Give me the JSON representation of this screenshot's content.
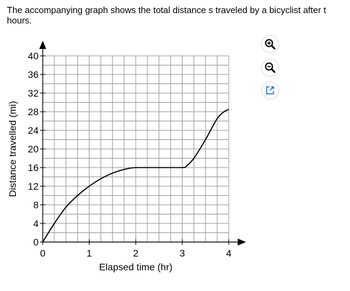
{
  "question": {
    "text": "The accompanying graph shows the total distance s traveled by a bicyclist after t hours."
  },
  "toolbar": {
    "buttons": [
      {
        "name": "zoom-in",
        "icon": "zoom-in-icon"
      },
      {
        "name": "zoom-out",
        "icon": "zoom-out-icon"
      },
      {
        "name": "popout",
        "icon": "popout-icon"
      }
    ],
    "accent_color": "#2a6ebb"
  },
  "chart_data": {
    "type": "line",
    "title": "",
    "xlabel": "Elapsed time (hr)",
    "ylabel": "Distance travelled (mi)",
    "xlim": [
      0,
      4
    ],
    "ylim": [
      0,
      40
    ],
    "x_ticks": [
      "0",
      "1",
      "2",
      "3",
      "4"
    ],
    "y_ticks": [
      "0",
      "4",
      "8",
      "12",
      "16",
      "20",
      "24",
      "28",
      "32",
      "36",
      "40"
    ],
    "grid": true,
    "line_color": "#000000",
    "grid_color": "#a0a0a0",
    "series": [
      {
        "x": [
          0,
          0.25,
          0.5,
          0.75,
          1.0,
          1.25,
          1.5,
          1.75,
          2.0,
          2.5,
          3.0,
          3.1,
          3.25,
          3.5,
          3.75,
          3.9,
          4.0
        ],
        "y": [
          0,
          4.0,
          7.5,
          10.0,
          12.0,
          13.6,
          14.8,
          15.6,
          16.0,
          16.0,
          16.0,
          16.4,
          18.0,
          22.0,
          26.5,
          28.0,
          28.5
        ]
      }
    ]
  }
}
